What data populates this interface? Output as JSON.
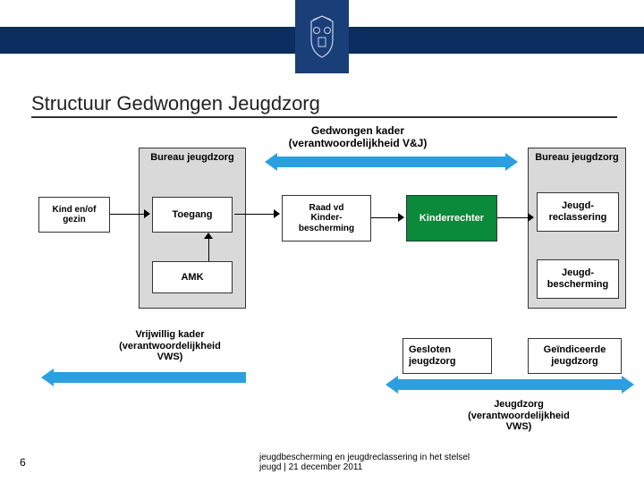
{
  "title": "Structuur Gedwongen Jeugdzorg",
  "top_label": "Gedwongen kader\n(verantwoordelijkheid V&J)",
  "panels": {
    "left": {
      "title": "Bureau jeugdzorg",
      "toegang": "Toegang",
      "amk": "AMK"
    },
    "right": {
      "title": "Bureau jeugdzorg",
      "jr": "Jeugd-\nreclassering",
      "jb": "Jeugd-\nbescherming"
    }
  },
  "kind": "Kind en/of\ngezin",
  "raad": "Raad vd\nKinder-\nbescherming",
  "kinderrechter": "Kinderrechter",
  "vrijwillig": "Vrijwillig kader\n(verantwoordelijkheid\nVWS)",
  "gesloten": "Gesloten\njeugdzorg",
  "geindiceerde": "Geïndiceerde\njeugdzorg",
  "jeugdzorg_vws": "Jeugdzorg\n(verantwoordelijkheid\nVWS)",
  "footer": "jeugdbescherming en jeugdreclassering in het stelsel\njeugd | 21 december 2011",
  "page": "6",
  "colors": {
    "arrow": "#2aa0e0",
    "green": "#0a8a3a",
    "panel": "#d9d9d9",
    "navy": "#0b2d5f"
  }
}
